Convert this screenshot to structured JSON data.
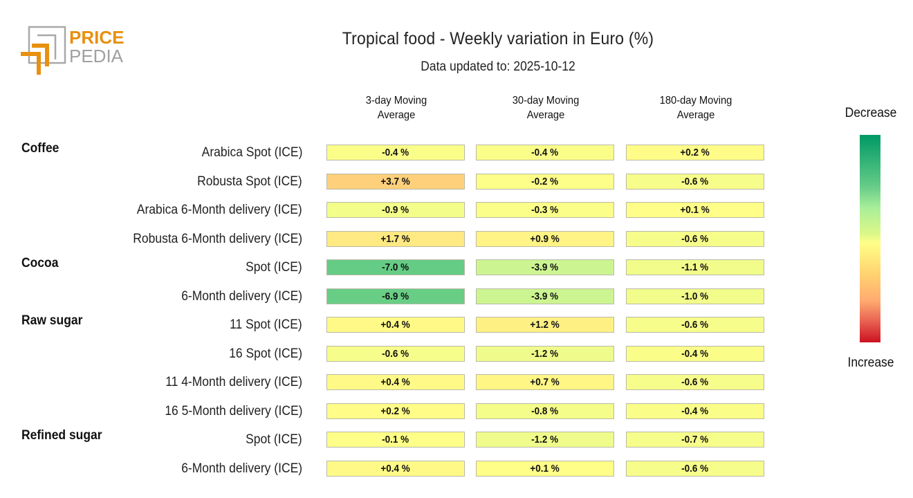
{
  "logo": {
    "text_top": "PRICE",
    "text_bottom": "PEDIA",
    "colors": {
      "orange": "#e8900f",
      "gray": "#a0a0a0"
    }
  },
  "chart_data": {
    "type": "heatmap",
    "title": "Tropical food - Weekly variation in Euro (%)",
    "subtitle": "Data updated to: 2025-10-12",
    "columns": [
      "3-day Moving Average",
      "30-day Moving Average",
      "180-day Moving Average"
    ],
    "column_lines": [
      [
        "3-day Moving",
        "Average"
      ],
      [
        "30-day Moving",
        "Average"
      ],
      [
        "180-day Moving",
        "Average"
      ]
    ],
    "groups": [
      {
        "name": "Coffee",
        "rows": [
          {
            "label": "Arabica Spot (ICE)",
            "values": [
              -0.4,
              -0.4,
              0.2
            ],
            "display": [
              "-0.4 %",
              "-0.4 %",
              "+0.2 %"
            ]
          },
          {
            "label": "Robusta Spot (ICE)",
            "values": [
              3.7,
              -0.2,
              -0.6
            ],
            "display": [
              "+3.7 %",
              "-0.2 %",
              "-0.6 %"
            ]
          },
          {
            "label": "Arabica 6-Month delivery (ICE)",
            "values": [
              -0.9,
              -0.3,
              0.1
            ],
            "display": [
              "-0.9 %",
              "-0.3 %",
              "+0.1 %"
            ]
          },
          {
            "label": "Robusta 6-Month delivery (ICE)",
            "values": [
              1.7,
              0.9,
              -0.6
            ],
            "display": [
              "+1.7 %",
              "+0.9 %",
              "-0.6 %"
            ]
          }
        ]
      },
      {
        "name": "Cocoa",
        "rows": [
          {
            "label": "Spot (ICE)",
            "values": [
              -7.0,
              -3.9,
              -1.1
            ],
            "display": [
              "-7.0 %",
              "-3.9 %",
              "-1.1 %"
            ]
          },
          {
            "label": "6-Month delivery (ICE)",
            "values": [
              -6.9,
              -3.9,
              -1.0
            ],
            "display": [
              "-6.9 %",
              "-3.9 %",
              "-1.0 %"
            ]
          }
        ]
      },
      {
        "name": "Raw sugar",
        "rows": [
          {
            "label": "11 Spot (ICE)",
            "values": [
              0.4,
              1.2,
              -0.6
            ],
            "display": [
              "+0.4 %",
              "+1.2 %",
              "-0.6 %"
            ]
          },
          {
            "label": "16 Spot (ICE)",
            "values": [
              -0.6,
              -1.2,
              -0.4
            ],
            "display": [
              "-0.6 %",
              "-1.2 %",
              "-0.4 %"
            ]
          },
          {
            "label": "11 4-Month delivery (ICE)",
            "values": [
              0.4,
              0.7,
              -0.6
            ],
            "display": [
              "+0.4 %",
              "+0.7 %",
              "-0.6 %"
            ]
          },
          {
            "label": "16 5-Month delivery (ICE)",
            "values": [
              0.2,
              -0.8,
              -0.4
            ],
            "display": [
              "+0.2 %",
              "-0.8 %",
              "-0.4 %"
            ]
          }
        ]
      },
      {
        "name": "Refined sugar",
        "rows": [
          {
            "label": "Spot (ICE)",
            "values": [
              -0.1,
              -1.2,
              -0.7
            ],
            "display": [
              "-0.1 %",
              "-1.2 %",
              "-0.7 %"
            ]
          },
          {
            "label": "6-Month delivery (ICE)",
            "values": [
              0.4,
              0.1,
              -0.6
            ],
            "display": [
              "+0.4 %",
              "+0.1 %",
              "-0.6 %"
            ]
          }
        ]
      }
    ],
    "legend": {
      "top": "Decrease",
      "bottom": "Increase",
      "colors": [
        "#009966",
        "#a8ee99",
        "#ffff88",
        "#ffaa70",
        "#cc1122"
      ]
    }
  }
}
